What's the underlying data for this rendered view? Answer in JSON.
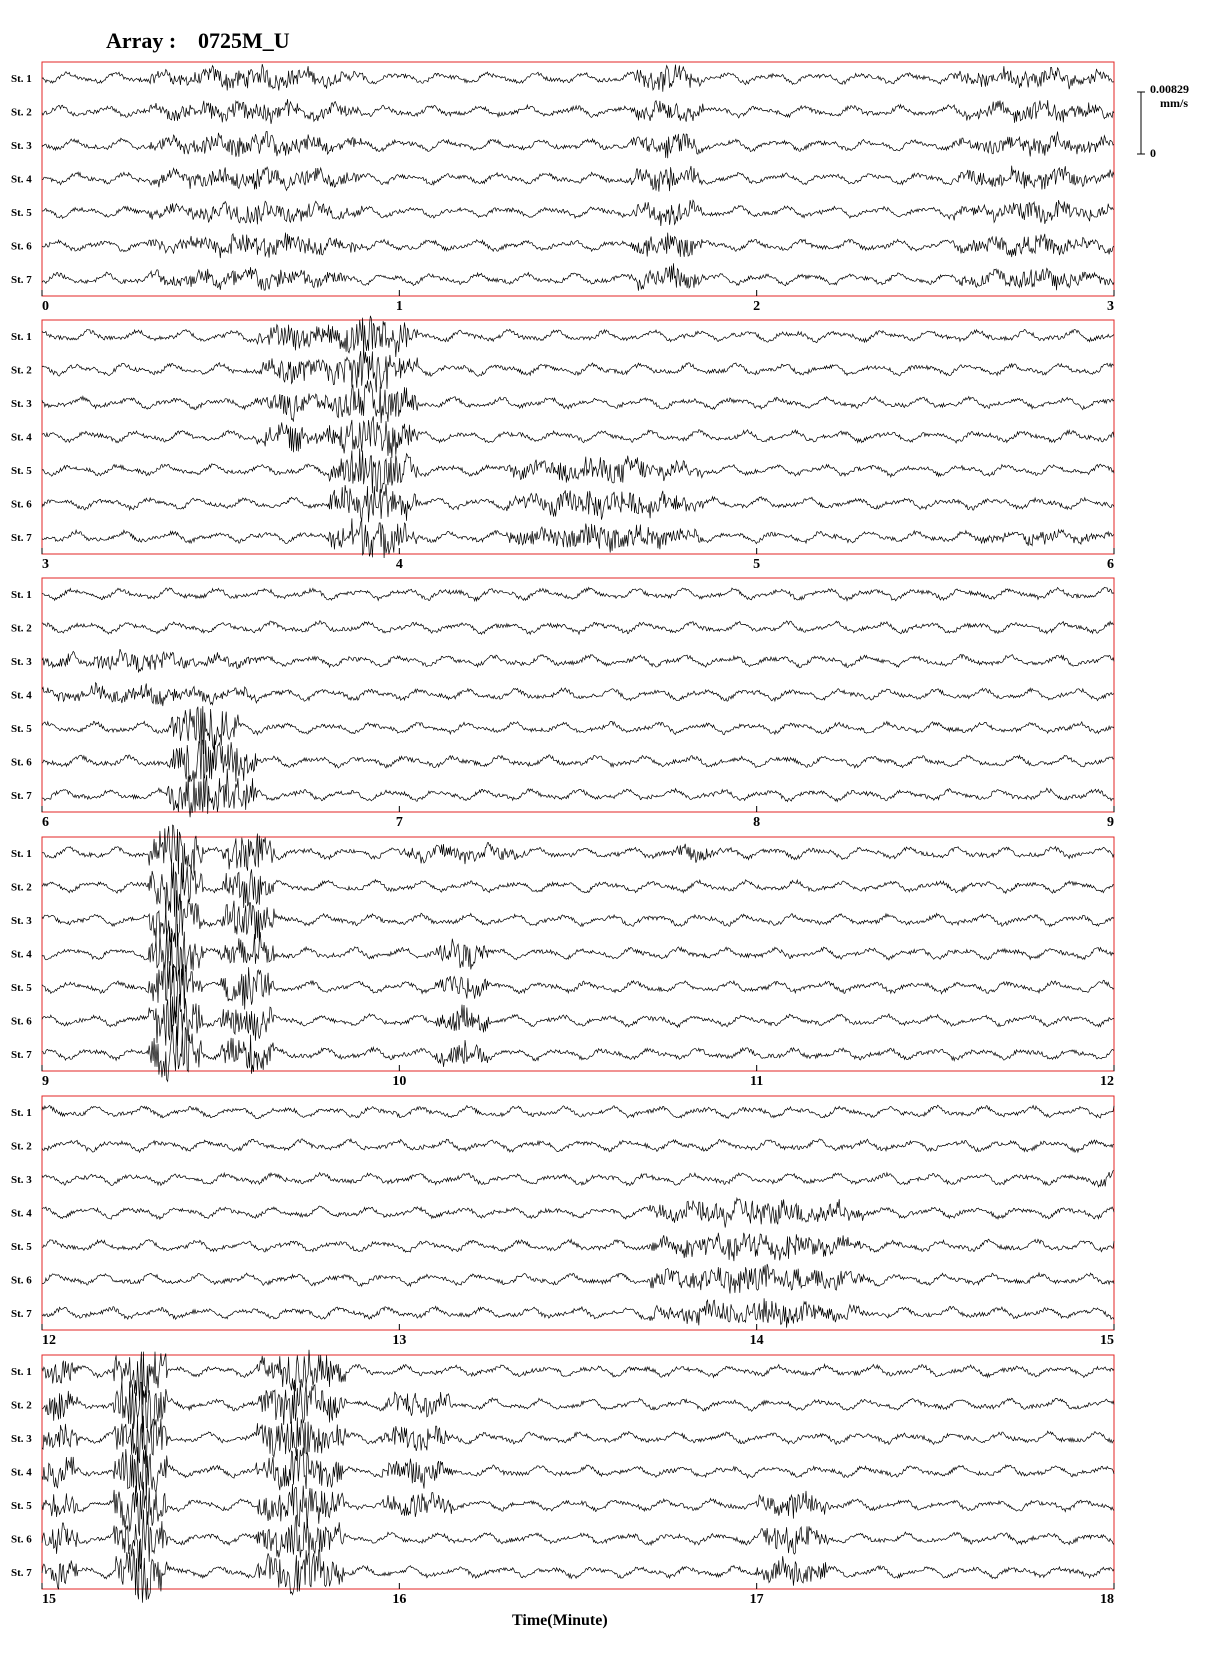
{
  "header": {
    "array_label": "Array :",
    "array_name": "0725M_U"
  },
  "scale": {
    "value": "0.00829",
    "unit": "mm/s",
    "zero": "0"
  },
  "colors": {
    "frame": "#e32626",
    "trace": "#000000",
    "text": "#000000"
  },
  "chart_data": {
    "type": "line",
    "title": "",
    "xlabel": "Time(Minute)",
    "ylabel": "",
    "grid": false,
    "stations": [
      "St. 1",
      "St. 2",
      "St. 3",
      "St. 4",
      "St. 5",
      "St. 6",
      "St. 7"
    ],
    "panels": [
      {
        "xlim": [
          0,
          3
        ],
        "ticks": [
          0,
          1,
          2,
          3
        ],
        "tick_labels": [
          "0",
          "1",
          "2",
          "3"
        ]
      },
      {
        "xlim": [
          3,
          6
        ],
        "ticks": [
          3,
          4,
          5,
          6
        ],
        "tick_labels": [
          "3",
          "4",
          "5",
          "6"
        ]
      },
      {
        "xlim": [
          6,
          9
        ],
        "ticks": [
          6,
          7,
          8,
          9
        ],
        "tick_labels": [
          "6",
          "7",
          "8",
          "9"
        ]
      },
      {
        "xlim": [
          9,
          12
        ],
        "ticks": [
          9,
          10,
          11,
          12
        ],
        "tick_labels": [
          "9",
          "10",
          "11",
          "12"
        ]
      },
      {
        "xlim": [
          12,
          15
        ],
        "ticks": [
          12,
          13,
          14,
          15
        ],
        "tick_labels": [
          "12",
          "13",
          "14",
          "15"
        ]
      },
      {
        "xlim": [
          15,
          18
        ],
        "ticks": [
          15,
          16,
          17,
          18
        ],
        "tick_labels": [
          "15",
          "16",
          "17",
          "18"
        ]
      }
    ],
    "bursts": [
      {
        "t": [
          0.3,
          0.9
        ],
        "stations": [
          1,
          2,
          3,
          4,
          5,
          6,
          7
        ],
        "amp": 2.2
      },
      {
        "t": [
          1.65,
          1.85
        ],
        "stations": [
          1,
          2,
          3,
          4,
          5,
          6,
          7
        ],
        "amp": 2.8
      },
      {
        "t": [
          2.55,
          3.0
        ],
        "stations": [
          1,
          2,
          3,
          4,
          5,
          6,
          7
        ],
        "amp": 2.0
      },
      {
        "t": [
          3.6,
          3.8
        ],
        "stations": [
          1,
          2,
          3,
          4
        ],
        "amp": 3.0
      },
      {
        "t": [
          3.8,
          4.05
        ],
        "stations": [
          1,
          2,
          3,
          4,
          5,
          6,
          7
        ],
        "amp": 5.0
      },
      {
        "t": [
          4.3,
          4.85
        ],
        "stations": [
          5,
          6,
          7
        ],
        "amp": 2.8
      },
      {
        "t": [
          5.6,
          6.0
        ],
        "stations": [
          7
        ],
        "amp": 1.2
      },
      {
        "t": [
          6.0,
          6.6
        ],
        "stations": [
          3,
          4
        ],
        "amp": 1.8
      },
      {
        "t": [
          6.35,
          6.55
        ],
        "stations": [
          5,
          6,
          7
        ],
        "amp": 6.0
      },
      {
        "t": [
          6.5,
          6.6
        ],
        "stations": [
          6,
          7
        ],
        "amp": 5.0
      },
      {
        "t": [
          9.3,
          9.45
        ],
        "stations": [
          1,
          2,
          3,
          4,
          5,
          6,
          7
        ],
        "amp": 7.0
      },
      {
        "t": [
          9.5,
          9.65
        ],
        "stations": [
          1,
          2,
          3,
          4,
          5,
          6,
          7
        ],
        "amp": 5.0
      },
      {
        "t": [
          10.0,
          10.35
        ],
        "stations": [
          1
        ],
        "amp": 1.8
      },
      {
        "t": [
          10.1,
          10.25
        ],
        "stations": [
          4,
          5,
          6,
          7
        ],
        "amp": 3.0
      },
      {
        "t": [
          10.75,
          10.9
        ],
        "stations": [
          1
        ],
        "amp": 1.5
      },
      {
        "t": [
          13.7,
          14.3
        ],
        "stations": [
          4,
          5,
          6,
          7
        ],
        "amp": 3.0
      },
      {
        "t": [
          14.95,
          15.0
        ],
        "stations": [
          3
        ],
        "amp": 2.0
      },
      {
        "t": [
          15.0,
          15.1
        ],
        "stations": [
          1,
          2,
          3,
          4,
          5,
          6,
          7
        ],
        "amp": 3.5
      },
      {
        "t": [
          15.2,
          15.35
        ],
        "stations": [
          1,
          2,
          3,
          4,
          5,
          6,
          7
        ],
        "amp": 7.0
      },
      {
        "t": [
          15.6,
          15.85
        ],
        "stations": [
          1,
          2,
          3,
          4,
          5,
          6,
          7
        ],
        "amp": 5.0
      },
      {
        "t": [
          15.95,
          16.15
        ],
        "stations": [
          2,
          3,
          4,
          5
        ],
        "amp": 3.0
      },
      {
        "t": [
          17.0,
          17.2
        ],
        "stations": [
          5,
          6,
          7
        ],
        "amp": 3.0
      }
    ]
  }
}
